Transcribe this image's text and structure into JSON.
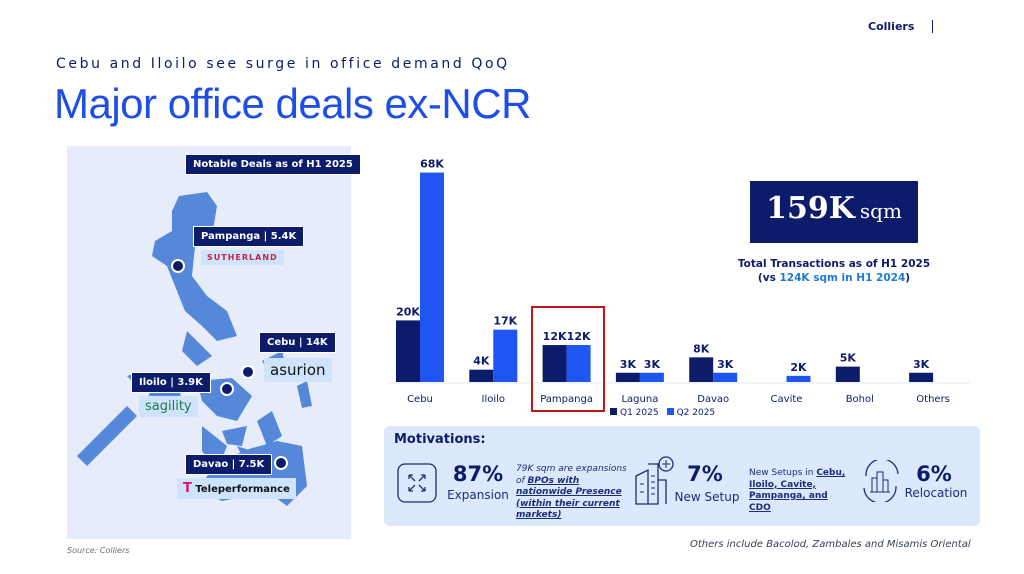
{
  "header": {
    "brand": "Colliers",
    "subtitle": "Cebu and Iloilo see surge in office demand QoQ",
    "title": "Major office deals ex-NCR"
  },
  "map": {
    "heading": "Notable Deals as of H1 2025",
    "deals": [
      {
        "label": "Pampanga | 5.4K",
        "company": "SUTHERLAND"
      },
      {
        "label": "Cebu | 14K",
        "company": "asurion"
      },
      {
        "label": "Iloilo | 3.9K",
        "company": "sagility"
      },
      {
        "label": "Davao | 7.5K",
        "company": "Teleperformance"
      }
    ],
    "source": "Source: Colliers"
  },
  "chart_data": {
    "type": "bar",
    "categories": [
      "Cebu",
      "Iloilo",
      "Pampanga",
      "Laguna",
      "Davao",
      "Cavite",
      "Bohol",
      "Others"
    ],
    "series": [
      {
        "name": "Q1 2025",
        "values": [
          20,
          4,
          12,
          3,
          8,
          0,
          5,
          3
        ],
        "labels": [
          "20K",
          "4K",
          "12K",
          "3K",
          "8K",
          "",
          "5K",
          "3K"
        ],
        "color": "#0c1c6b"
      },
      {
        "name": "Q2 2025",
        "values": [
          68,
          17,
          12,
          3,
          3,
          2,
          0,
          0
        ],
        "labels": [
          "68K",
          "17K",
          "12K",
          "3K",
          "3K",
          "2K",
          "",
          ""
        ],
        "color": "#1f55f0"
      }
    ],
    "unit": "K sqm",
    "highlight": "Pampanga",
    "grid": false,
    "legend": "bottom"
  },
  "summary": {
    "value": "159K",
    "unit": "sqm",
    "text_a": "Total Transactions as of H1 2025 (vs ",
    "text_b": "124K sqm in H1 2024",
    "text_c": ")"
  },
  "motivations": {
    "title": "Motivations:",
    "expansion": {
      "pct": "87%",
      "label": "Expansion",
      "note_a": "79K sqm are expansions of ",
      "note_b": "BPOs with nationwide Presence (within their current markets)"
    },
    "newsetup": {
      "pct": "7%",
      "label": "New Setup",
      "note_a": "New Setups in ",
      "note_b": "Cebu, Iloilo, Cavite, Pampanga, and CDO"
    },
    "relocation": {
      "pct": "6%",
      "label": "Relocation"
    }
  },
  "footnote": "Others include Bacolod, Zambales and Misamis Oriental"
}
